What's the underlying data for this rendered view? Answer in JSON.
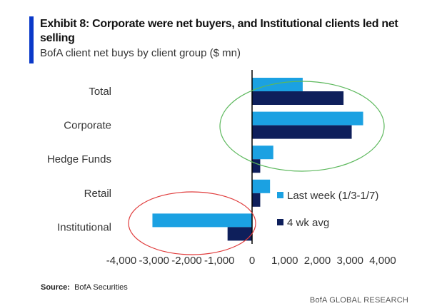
{
  "header": {
    "title": "Exhibit 8: Corporate were net buyers, and Institutional clients led net selling",
    "subtitle": "BofA client net buys by client group ($ mn)"
  },
  "source": {
    "label": "Source:",
    "text": "BofA Securities"
  },
  "footer": {
    "brand": "BofA GLOBAL RESEARCH"
  },
  "colors": {
    "accent": "#0a39c9",
    "last_week": "#1ba1e2",
    "four_wk_avg": "#0e1f5b",
    "green_ellipse": "#5cb85c",
    "red_ellipse": "#e03c3c"
  },
  "chart_data": {
    "type": "bar",
    "orientation": "horizontal",
    "categories": [
      "Total",
      "Corporate",
      "Hedge Funds",
      "Retail",
      "Institutional"
    ],
    "series": [
      {
        "name": "Last week (1/3-1/7)",
        "values": [
          1550,
          3400,
          650,
          550,
          -3050
        ]
      },
      {
        "name": "4 wk avg",
        "values": [
          2800,
          3050,
          250,
          250,
          -750
        ]
      }
    ],
    "xlim": [
      -4000,
      4000
    ],
    "xticks": [
      -4000,
      -3000,
      -2000,
      -1000,
      0,
      1000,
      2000,
      3000,
      4000
    ],
    "xtick_labels": [
      "-4,000",
      "-3,000",
      "-2,000",
      "-1,000",
      "0",
      "1,000",
      "2,000",
      "3,000",
      "4,000"
    ],
    "legend_position": "right",
    "grid": false
  }
}
